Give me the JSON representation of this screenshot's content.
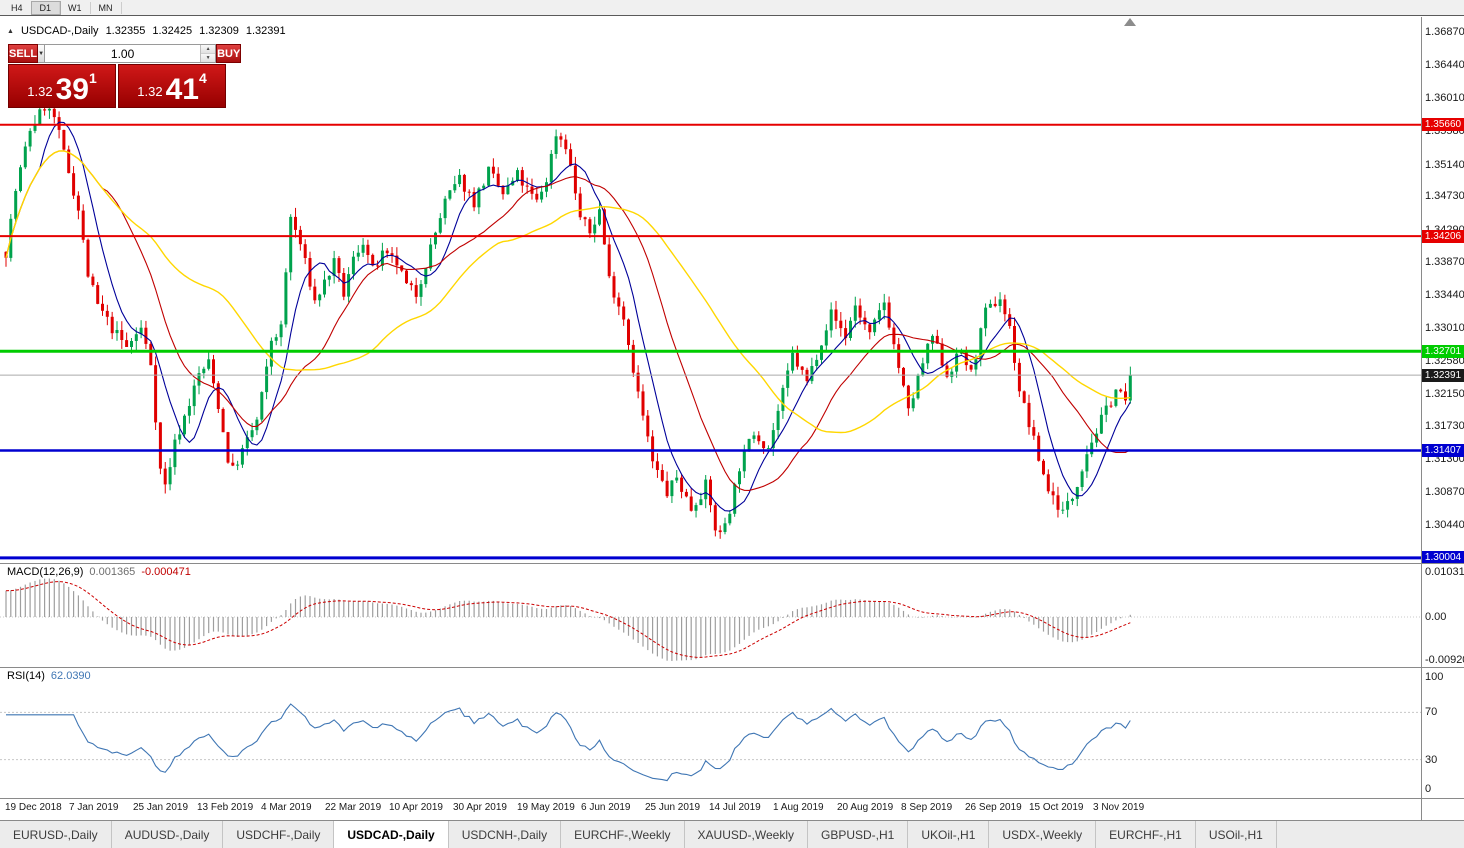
{
  "toolbar": {
    "timeframes": [
      "H4",
      "D1",
      "W1",
      "MN"
    ],
    "active": "D1"
  },
  "chart_header": {
    "symbol": "USDCAD-,Daily",
    "open": "1.32355",
    "high": "1.32425",
    "low": "1.32309",
    "close": "1.32391"
  },
  "trade_widget": {
    "sell_label": "SELL",
    "buy_label": "BUY",
    "volume": "1.00",
    "sell_price": {
      "prefix": "1.32",
      "big": "39",
      "sup": "1"
    },
    "buy_price": {
      "prefix": "1.32",
      "big": "41",
      "sup": "4"
    }
  },
  "chart_data": {
    "type": "candlestick",
    "symbol": "USDCAD",
    "timeframe": "Daily",
    "last_ohlc": {
      "open": 1.32355,
      "high": 1.32425,
      "low": 1.32309,
      "close": 1.32391
    },
    "y_axis_ticks": [
      "1.36870",
      "1.36440",
      "1.36010",
      "1.35580",
      "1.35140",
      "1.34730",
      "1.34290",
      "1.33870",
      "1.33440",
      "1.33010",
      "1.32580",
      "1.32150",
      "1.31730",
      "1.31300",
      "1.30870",
      "1.30440"
    ],
    "x_axis_labels": [
      "19 Dec 2018",
      "7 Jan 2019",
      "25 Jan 2019",
      "13 Feb 2019",
      "4 Mar 2019",
      "22 Mar 2019",
      "10 Apr 2019",
      "30 Apr 2019",
      "19 May 2019",
      "6 Jun 2019",
      "25 Jun 2019",
      "14 Jul 2019",
      "1 Aug 2019",
      "20 Aug 2019",
      "8 Sep 2019",
      "26 Sep 2019",
      "15 Oct 2019",
      "3 Nov 2019"
    ],
    "horizontal_levels": [
      {
        "price": 1.3566,
        "label": "1.35660",
        "color": "#e60000",
        "line_width": 2
      },
      {
        "price": 1.34206,
        "label": "1.34206",
        "color": "#e60000",
        "line_width": 2
      },
      {
        "price": 1.32701,
        "label": "1.32701",
        "color": "#00cc00",
        "line_width": 3
      },
      {
        "price": 1.31407,
        "label": "1.31407",
        "color": "#0000d0",
        "line_width": 2.5
      },
      {
        "price": 1.30004,
        "label": "1.30004",
        "color": "#0000d0",
        "line_width": 3
      }
    ],
    "current_price": {
      "value": 1.32391,
      "label": "1.32391",
      "tag_color": "#1a1a1a"
    },
    "candles": {
      "count": 234,
      "up_color": "#00a24d",
      "down_color": "#e00000",
      "close_waypoints": [
        [
          0,
          1.34
        ],
        [
          2,
          1.348
        ],
        [
          5,
          1.356
        ],
        [
          8,
          1.359
        ],
        [
          10,
          1.3575
        ],
        [
          13,
          1.3505
        ],
        [
          15,
          1.3455
        ],
        [
          17,
          1.337
        ],
        [
          19,
          1.333
        ],
        [
          22,
          1.33
        ],
        [
          25,
          1.3275
        ],
        [
          28,
          1.33
        ],
        [
          30,
          1.3255
        ],
        [
          32,
          1.3115
        ],
        [
          33,
          1.3095
        ],
        [
          35,
          1.315
        ],
        [
          37,
          1.3185
        ],
        [
          40,
          1.324
        ],
        [
          42,
          1.3255
        ],
        [
          44,
          1.32
        ],
        [
          46,
          1.313
        ],
        [
          47,
          1.3115
        ],
        [
          49,
          1.314
        ],
        [
          52,
          1.318
        ],
        [
          54,
          1.3245
        ],
        [
          55,
          1.3285
        ],
        [
          57,
          1.33
        ],
        [
          59,
          1.3445
        ],
        [
          61,
          1.341
        ],
        [
          64,
          1.3335
        ],
        [
          66,
          1.336
        ],
        [
          68,
          1.3385
        ],
        [
          70,
          1.3345
        ],
        [
          72,
          1.339
        ],
        [
          74,
          1.3415
        ],
        [
          76,
          1.3375
        ],
        [
          78,
          1.3395
        ],
        [
          81,
          1.3385
        ],
        [
          83,
          1.3355
        ],
        [
          85,
          1.3345
        ],
        [
          88,
          1.3405
        ],
        [
          91,
          1.3465
        ],
        [
          94,
          1.3495
        ],
        [
          97,
          1.3465
        ],
        [
          100,
          1.3505
        ],
        [
          103,
          1.3475
        ],
        [
          106,
          1.35
        ],
        [
          108,
          1.348
        ],
        [
          110,
          1.3465
        ],
        [
          112,
          1.3495
        ],
        [
          114,
          1.3555
        ],
        [
          116,
          1.354
        ],
        [
          117,
          1.351
        ],
        [
          119,
          1.3445
        ],
        [
          121,
          1.3425
        ],
        [
          123,
          1.3455
        ],
        [
          125,
          1.3365
        ],
        [
          128,
          1.3315
        ],
        [
          131,
          1.3215
        ],
        [
          134,
          1.3125
        ],
        [
          137,
          1.3085
        ],
        [
          139,
          1.3105
        ],
        [
          142,
          1.3065
        ],
        [
          145,
          1.3095
        ],
        [
          147,
          1.304
        ],
        [
          148,
          1.303
        ],
        [
          150,
          1.3065
        ],
        [
          152,
          1.312
        ],
        [
          155,
          1.3165
        ],
        [
          158,
          1.3145
        ],
        [
          161,
          1.3215
        ],
        [
          163,
          1.3265
        ],
        [
          166,
          1.323
        ],
        [
          169,
          1.3285
        ],
        [
          171,
          1.332
        ],
        [
          174,
          1.329
        ],
        [
          176,
          1.333
        ],
        [
          179,
          1.329
        ],
        [
          182,
          1.3335
        ],
        [
          185,
          1.325
        ],
        [
          187,
          1.319
        ],
        [
          190,
          1.3255
        ],
        [
          192,
          1.329
        ],
        [
          195,
          1.324
        ],
        [
          198,
          1.327
        ],
        [
          200,
          1.324
        ],
        [
          203,
          1.332
        ],
        [
          206,
          1.334
        ],
        [
          208,
          1.33
        ],
        [
          210,
          1.322
        ],
        [
          214,
          1.313
        ],
        [
          216,
          1.309
        ],
        [
          219,
          1.306
        ],
        [
          221,
          1.308
        ],
        [
          224,
          1.314
        ],
        [
          227,
          1.318
        ],
        [
          230,
          1.322
        ],
        [
          232,
          1.3205
        ],
        [
          233,
          1.32391
        ]
      ]
    },
    "moving_averages": [
      {
        "period": 8,
        "color": "#000099"
      },
      {
        "period": 21,
        "color": "#c00000"
      },
      {
        "period": 45,
        "color": "#ffd700"
      }
    ],
    "macd": {
      "label": "MACD(12,26,9)",
      "value": "0.001365",
      "signal_value": "-0.000471",
      "scale_ticks": [
        "0.010311",
        "0.00",
        "-0.009203"
      ],
      "histogram_color": "#9e9e9e",
      "signal_color": "#cc0000"
    },
    "rsi": {
      "label": "RSI(14)",
      "value": "62.0390",
      "scale_ticks": [
        100,
        70,
        30,
        0
      ],
      "levels": [
        70,
        30
      ],
      "line_color": "#3f76b4"
    }
  },
  "tabs": [
    {
      "label": "EURUSD-,Daily",
      "active": false
    },
    {
      "label": "AUDUSD-,Daily",
      "active": false
    },
    {
      "label": "USDCHF-,Daily",
      "active": false
    },
    {
      "label": "USDCAD-,Daily",
      "active": true
    },
    {
      "label": "USDCNH-,Daily",
      "active": false
    },
    {
      "label": "EURCHF-,Weekly",
      "active": false
    },
    {
      "label": "XAUUSD-,Weekly",
      "active": false
    },
    {
      "label": "GBPUSD-,H1",
      "active": false
    },
    {
      "label": "UKOil-,H1",
      "active": false
    },
    {
      "label": "USDX-,Weekly",
      "active": false
    },
    {
      "label": "EURCHF-,H1",
      "active": false
    },
    {
      "label": "USOil-,H1",
      "active": false
    }
  ]
}
